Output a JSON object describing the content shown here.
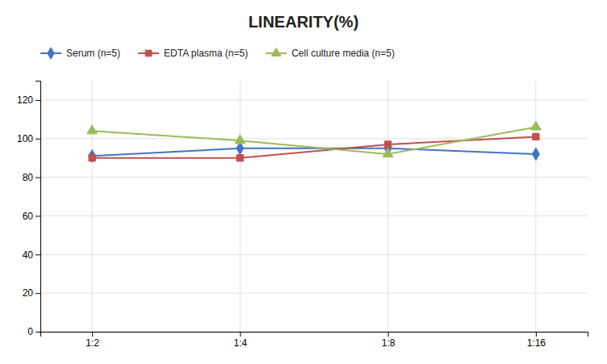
{
  "chart_data": {
    "type": "line",
    "title": "LINEARITY(%)",
    "categories": [
      "1:2",
      "1:4",
      "1:8",
      "1:16"
    ],
    "series": [
      {
        "name": "Serum (n=5)",
        "color": "#4472C4",
        "marker": "diamond",
        "values": [
          91,
          95,
          95,
          92
        ]
      },
      {
        "name": "EDTA plasma (n=5)",
        "color": "#C0504D",
        "marker": "square",
        "values": [
          90,
          90,
          97,
          101
        ]
      },
      {
        "name": "Cell culture media (n=5)",
        "color": "#9BBB59",
        "marker": "triangle",
        "values": [
          104,
          99,
          92,
          106
        ]
      }
    ],
    "ylim": [
      0,
      130
    ],
    "yticks": [
      0,
      20,
      40,
      60,
      80,
      100,
      120
    ],
    "grid": true,
    "legend": "top"
  }
}
